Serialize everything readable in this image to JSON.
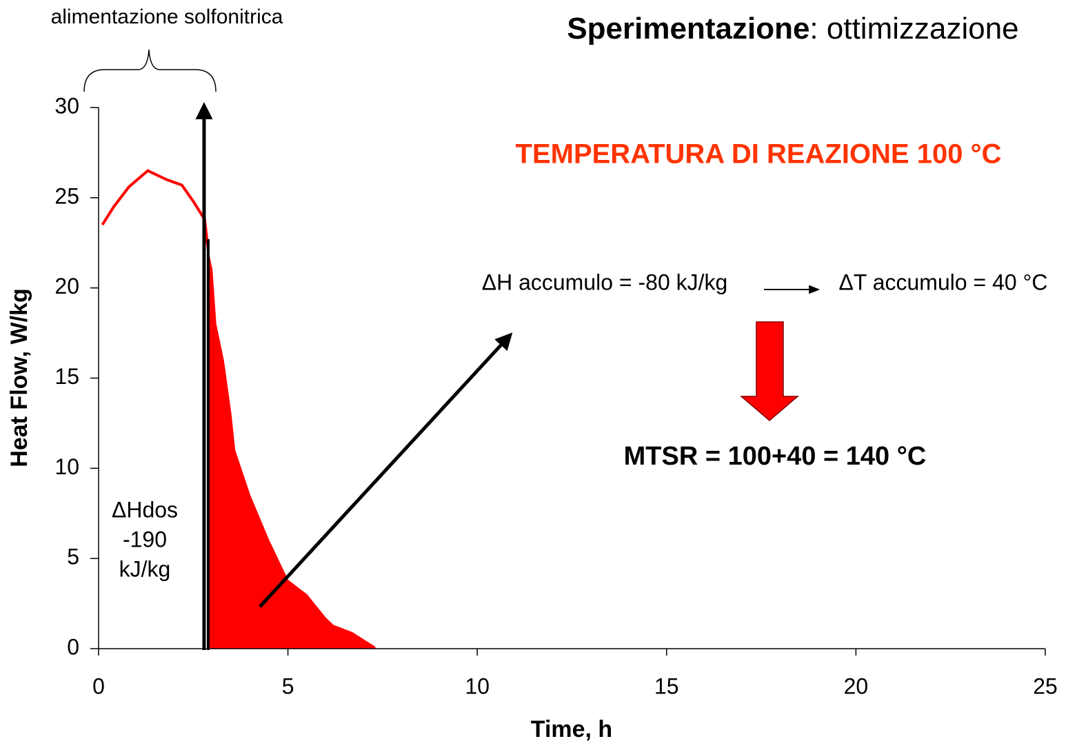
{
  "chart_data": {
    "type": "line",
    "title_bold": "Sperimentazione",
    "title_rest": ": ottimizzazione",
    "x_label": "Time, h",
    "y_label": "Heat Flow, W/kg",
    "xlim": [
      0,
      25
    ],
    "xticks": [
      0,
      5,
      10,
      15,
      20,
      25
    ],
    "ylim": [
      0,
      30
    ],
    "yticks": [
      0,
      5,
      10,
      15,
      20,
      25,
      30
    ],
    "grid": false,
    "series": [
      {
        "style": "line",
        "color": "#ff0000",
        "x": [
          0.1,
          0.4,
          0.8,
          1.3,
          1.8,
          2.2,
          2.5,
          2.8,
          2.9
        ],
        "values": [
          23.5,
          24.5,
          25.6,
          26.5,
          26.0,
          25.7,
          24.8,
          23.8,
          22.0
        ]
      },
      {
        "style": "area",
        "color": "#ff0000",
        "x": [
          2.9,
          3.0,
          3.1,
          3.3,
          3.5,
          3.6,
          4.0,
          4.5,
          5.0,
          5.5,
          6.0,
          6.2,
          6.7,
          7.0,
          7.3
        ],
        "values": [
          22.0,
          21.0,
          18.0,
          16.0,
          13.0,
          11.0,
          8.5,
          6.0,
          3.8,
          3.0,
          1.7,
          1.3,
          0.9,
          0.5,
          0.1
        ]
      }
    ],
    "annotations": {
      "feed": "alimentazione solfonitrica",
      "dhdos": [
        "ΔHdos",
        "-190",
        "kJ/kg"
      ],
      "dh_acc": "ΔH accumulo = -80 kJ/kg",
      "dt_acc": "ΔT accumulo = 40 °C",
      "temp": "TEMPERATURA DI REAZIONE 100 °C",
      "mtsr": "MTSR = 100+40 = 140 °C"
    }
  }
}
